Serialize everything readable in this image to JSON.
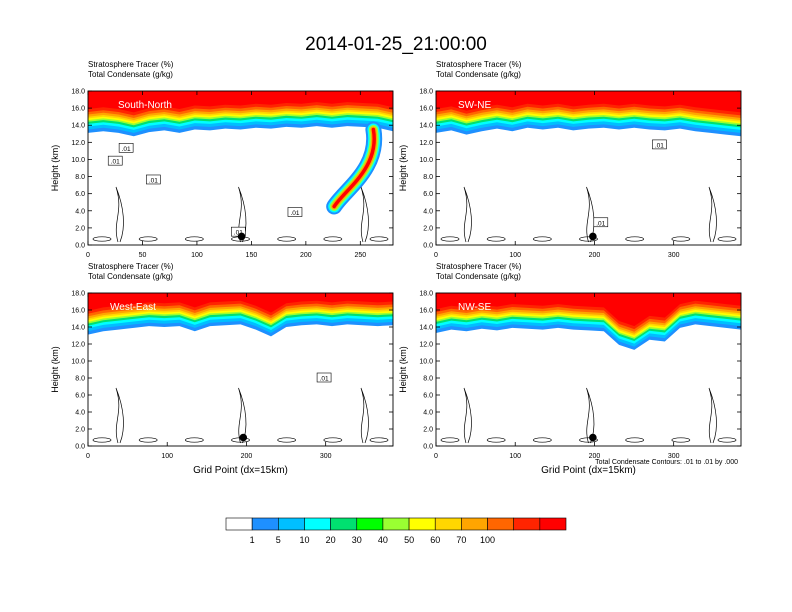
{
  "title": "2014-01-25_21:00:00",
  "field_labels": [
    "Stratosphere Tracer   (%)",
    "Total Condensate   (g/kg)"
  ],
  "colorbar": {
    "levels": [
      "1",
      "5",
      "10",
      "20",
      "30",
      "40",
      "50",
      "60",
      "70",
      "100"
    ],
    "colors": [
      "#ffffff",
      "#1e90ff",
      "#00bfff",
      "#00ffff",
      "#00e070",
      "#00ff00",
      "#9aff32",
      "#ffff00",
      "#ffd700",
      "#ffa500",
      "#ff6600",
      "#ff2400",
      "#ff0000"
    ]
  },
  "footnote": "Total Condensate Contours: .01 to .01 by .000",
  "chart_data": [
    {
      "type": "heatmap",
      "panel_label": "South-North",
      "ylabel": "Height (km)",
      "xlabel": "",
      "xlim": [
        0,
        280
      ],
      "xticks": [
        0,
        50,
        100,
        150,
        200,
        250
      ],
      "ylim": [
        0,
        18
      ],
      "yticks": [
        "0.0",
        "2.0",
        "4.0",
        "6.0",
        "8.0",
        "10.0",
        "12.0",
        "14.0",
        "16.0",
        "18.0"
      ],
      "tropopause_km": [
        14.0,
        14.2,
        14.0,
        13.6,
        14.1,
        14.3,
        14.0,
        14.4,
        14.3,
        14.5,
        14.4,
        14.6,
        14.5,
        14.7,
        14.6,
        14.8,
        14.6,
        14.8,
        14.7,
        14.6,
        14.2
      ],
      "intrusion": {
        "x_start": 262,
        "x_end": 226,
        "bottom_km": 4.5
      },
      "marker": {
        "x": 141,
        "z_km": 1.0
      },
      "contour_labels": [
        {
          "text": ".01",
          "x": 35,
          "z_km": 11.3
        },
        {
          "text": ".01",
          "x": 25,
          "z_km": 9.8
        },
        {
          "text": ".01",
          "x": 60,
          "z_km": 7.6
        },
        {
          "text": ".01",
          "x": 190,
          "z_km": 3.8
        },
        {
          "text": ".01",
          "x": 138,
          "z_km": 1.5
        }
      ]
    },
    {
      "type": "heatmap",
      "panel_label": "SW-NE",
      "ylabel": "Height (km)",
      "xlabel": "",
      "xlim": [
        0,
        385
      ],
      "xticks": [
        0,
        100,
        200,
        300
      ],
      "ylim": [
        0,
        18
      ],
      "yticks": [
        "0.0",
        "2.0",
        "4.0",
        "6.0",
        "8.0",
        "10.0",
        "12.0",
        "14.0",
        "16.0",
        "18.0"
      ],
      "tropopause_km": [
        14.0,
        14.3,
        13.8,
        14.2,
        14.5,
        14.2,
        14.6,
        14.4,
        14.6,
        14.3,
        14.5,
        14.6,
        14.4,
        14.6,
        14.4,
        14.3,
        14.5,
        14.2,
        14.0,
        13.8,
        13.6
      ],
      "marker": {
        "x": 198,
        "z_km": 1.0
      },
      "contour_labels": [
        {
          "text": ".01",
          "x": 282,
          "z_km": 11.7
        },
        {
          "text": ".01",
          "x": 208,
          "z_km": 2.6
        }
      ]
    },
    {
      "type": "heatmap",
      "panel_label": "West-East",
      "ylabel": "Height (km)",
      "xlabel": "Grid Point (dx=15km)",
      "xlim": [
        0,
        385
      ],
      "xticks": [
        0,
        100,
        200,
        300
      ],
      "ylim": [
        0,
        18
      ],
      "yticks": [
        "0.0",
        "2.0",
        "4.0",
        "6.0",
        "8.0",
        "10.0",
        "12.0",
        "14.0",
        "16.0",
        "18.0"
      ],
      "tropopause_km": [
        14.0,
        14.4,
        14.6,
        14.8,
        15.0,
        14.9,
        15.0,
        14.4,
        15.0,
        15.1,
        15.2,
        14.6,
        13.8,
        14.9,
        15.1,
        15.2,
        15.0,
        15.2,
        15.1,
        15.0,
        15.1
      ],
      "marker": {
        "x": 196,
        "z_km": 1.0
      },
      "contour_labels": [
        {
          "text": ".01",
          "x": 298,
          "z_km": 8.0
        }
      ]
    },
    {
      "type": "heatmap",
      "panel_label": "NW-SE",
      "ylabel": "Height (km)",
      "xlabel": "Grid Point (dx=15km)",
      "xlim": [
        0,
        385
      ],
      "xticks": [
        0,
        100,
        200,
        300
      ],
      "ylim": [
        0,
        18
      ],
      "yticks": [
        "0.0",
        "2.0",
        "4.0",
        "6.0",
        "8.0",
        "10.0",
        "12.0",
        "14.0",
        "16.0",
        "18.0"
      ],
      "tropopause_km": [
        14.2,
        14.6,
        14.4,
        14.7,
        14.5,
        14.8,
        14.7,
        14.6,
        14.8,
        14.6,
        14.5,
        14.4,
        12.8,
        12.2,
        13.4,
        13.2,
        14.8,
        15.2,
        15.0,
        14.8,
        14.6
      ],
      "marker": {
        "x": 198,
        "z_km": 1.0
      },
      "contour_labels": []
    }
  ]
}
